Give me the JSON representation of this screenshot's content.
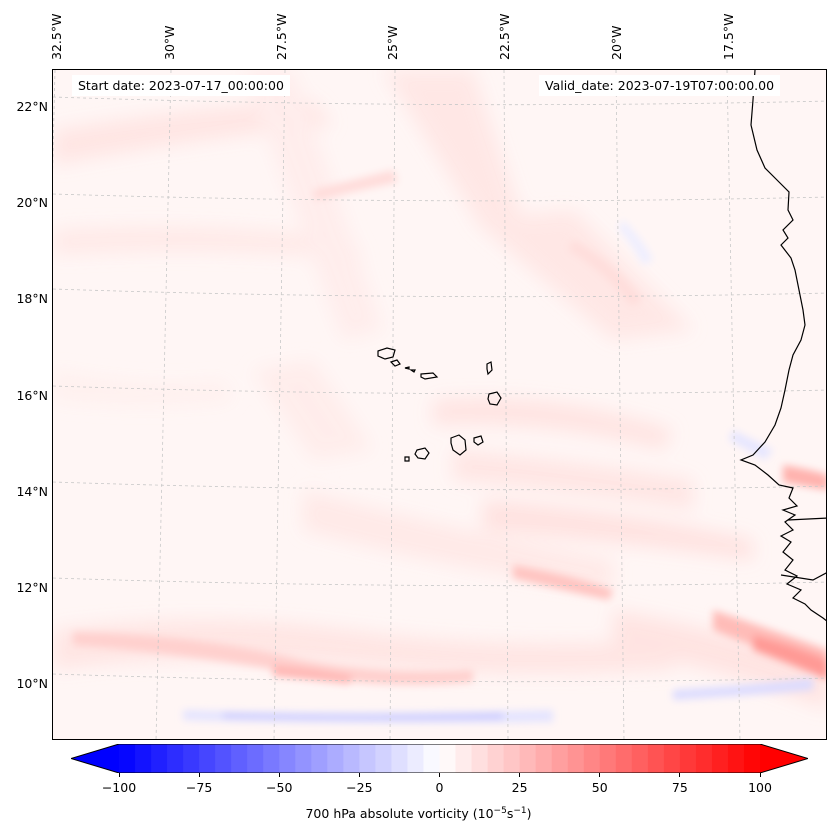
{
  "map": {
    "start_date": "Start date: 2023-07-17_00:00:00",
    "valid_date": "Valid_date: 2023-07-19T07:00:00.00",
    "lon_labels": [
      "32.5°W",
      "30°W",
      "27.5°W",
      "25°W",
      "22.5°W",
      "20°W",
      "17.5°W"
    ],
    "lat_labels": [
      "22°N",
      "20°N",
      "18°N",
      "16°N",
      "14°N",
      "12°N",
      "10°N"
    ],
    "extent": {
      "lon_min": -32.6,
      "lon_max": -15.5,
      "lat_min": 8.9,
      "lat_max": 22.8
    },
    "colors": {
      "negative_max": "#0000ff",
      "positive_max": "#ff0000",
      "neutral": "#ffffff",
      "coastline": "#000000"
    }
  },
  "colorbar": {
    "ticks": [
      "−100",
      "−75",
      "−50",
      "−25",
      "0",
      "25",
      "50",
      "75",
      "100"
    ],
    "label_main": "700 hPa absolute vorticity (10",
    "label_exp1": "−5",
    "label_mid": "s",
    "label_exp2": "−1",
    "label_end": ")",
    "range": [
      -100,
      100
    ],
    "extend": "both"
  }
}
